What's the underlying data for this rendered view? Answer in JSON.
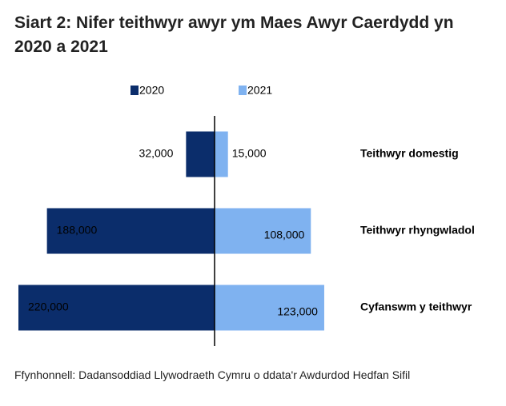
{
  "chart_data": {
    "type": "butterfly",
    "title": "Siart 2: Nifer teithwyr awyr ym Maes Awyr Caerdydd yn 2020 a 2021",
    "source": "Ffynhonnell: Dadansoddiad Llywodraeth Cymru o ddata'r Awdurdod Hedfan Sifil",
    "categories": [
      "Teithwyr domestig",
      "Teithwyr rhyngwladol",
      "Cyfanswm y teithwyr"
    ],
    "series": [
      {
        "name": "2020",
        "color": "#0b2d6b",
        "values": [
          32000,
          188000,
          220000
        ],
        "value_labels": [
          "32,000",
          "188,000",
          "220,000"
        ]
      },
      {
        "name": "2021",
        "color": "#7fb2f0",
        "values": [
          15000,
          108000,
          123000
        ],
        "value_labels": [
          "15,000",
          "108,000",
          "123,000"
        ]
      }
    ]
  }
}
